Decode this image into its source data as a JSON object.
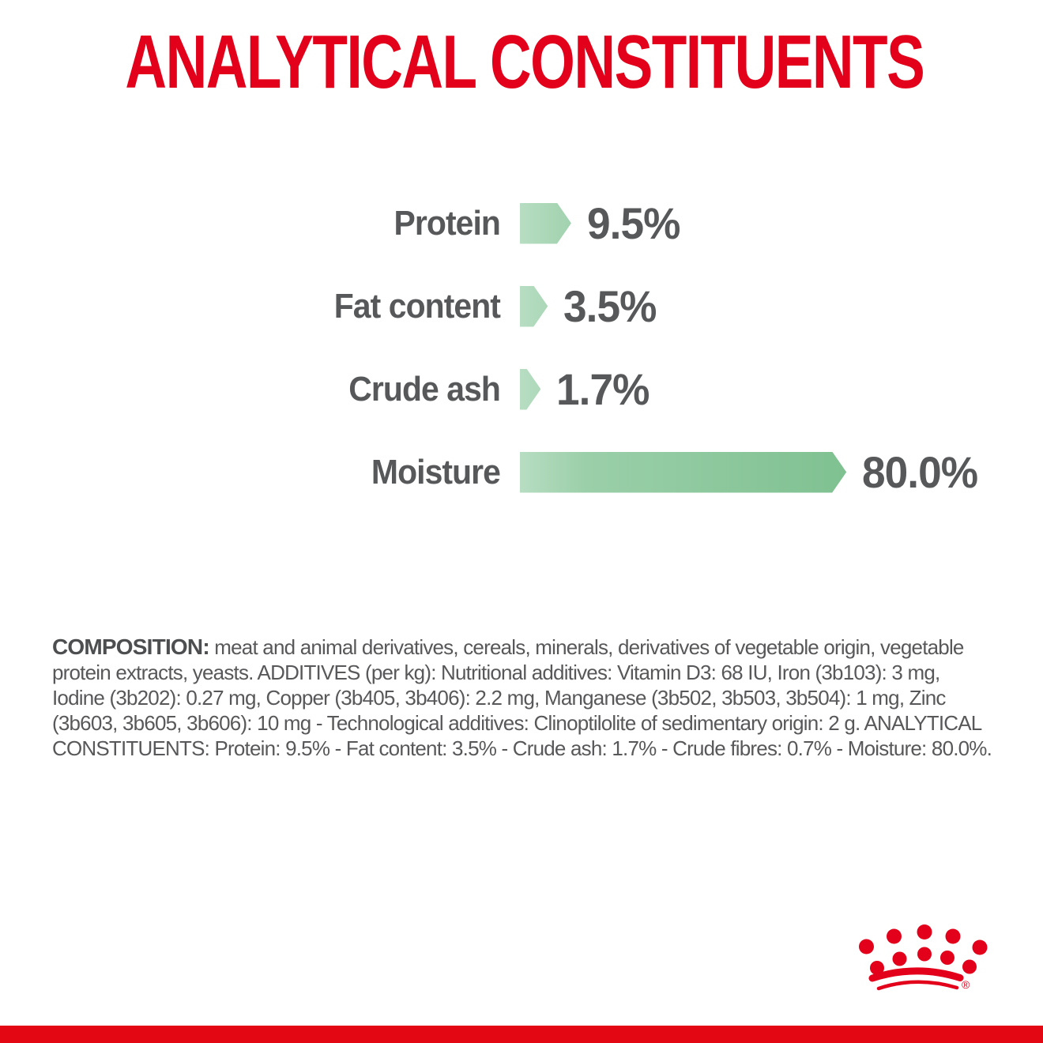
{
  "title": {
    "text": "ANALYTICAL CONSTITUENTS"
  },
  "chart_data": {
    "type": "bar",
    "orientation": "horizontal",
    "title": "ANALYTICAL CONSTITUENTS",
    "categories": [
      "Protein",
      "Fat content",
      "Crude ash",
      "Moisture"
    ],
    "values": [
      9.5,
      3.5,
      1.7,
      80.0
    ],
    "value_labels": [
      "9.5%",
      "3.5%",
      "1.7%",
      "80.0%"
    ],
    "xlabel": "",
    "ylabel": "",
    "xlim": [
      0,
      80
    ],
    "grid": false,
    "legend": false,
    "bar_gradient_start": "#b7ddc2",
    "bar_gradient_end": "#7fc191",
    "label_color": "#57585a",
    "title_color": "#e2001a"
  },
  "composition": {
    "label": "COMPOSITION:",
    "text": " meat and animal derivatives, cereals, minerals, derivatives of vegetable origin, vegetable protein extracts, yeasts. ADDITIVES (per kg): Nutritional additives: Vitamin D3: 68 IU, Iron (3b103): 3 mg, Iodine (3b202): 0.27 mg, Copper (3b405, 3b406): 2.2 mg, Manganese (3b502, 3b503, 3b504): 1 mg, Zinc (3b603, 3b605, 3b606): 10 mg - Technological additives: Clinoptilolite of sedimentary origin: 2 g. ANALYTICAL CONSTITUENTS: Protein: 9.5% - Fat content: 3.5% - Crude ash: 1.7% - Crude fibres: 0.7% - Moisture: 80.0%."
  },
  "branding": {
    "logo": "royal-canin-crown",
    "registered_mark": "®",
    "brand_red": "#e2001a",
    "footer_bar_color": "#e30613"
  }
}
